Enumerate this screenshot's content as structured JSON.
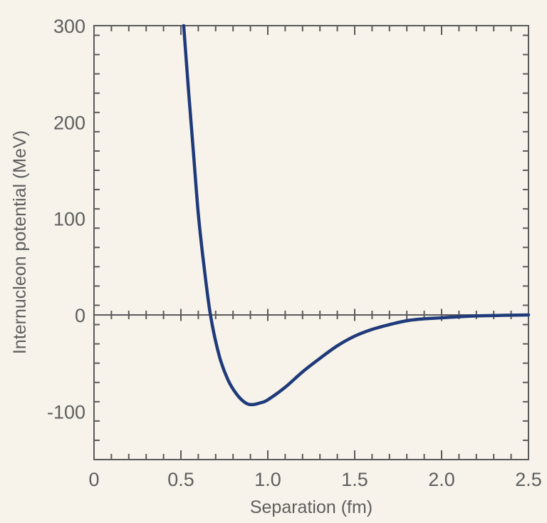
{
  "chart_data": {
    "type": "line",
    "title": "",
    "xlabel": "Separation (fm)",
    "ylabel": "Internucleon potential (MeV)",
    "xlim": [
      0,
      2.5
    ],
    "ylim": [
      -150,
      300
    ],
    "x_ticks": [
      0,
      0.5,
      1.0,
      1.5,
      2.0,
      2.5
    ],
    "x_tick_labels": [
      "0",
      "0.5",
      "1.0",
      "1.5",
      "2.0",
      "2.5"
    ],
    "x_minor_step": 0.1,
    "y_ticks": [
      300,
      200,
      100,
      0,
      -100
    ],
    "y_tick_labels": [
      "300",
      "200",
      "100",
      "0",
      "-100"
    ],
    "y_minor_step": 20,
    "grid": false,
    "zero_line": true,
    "colors": {
      "background": "#f7f3ea",
      "curve": "#1f3a7a",
      "axis": "#5a5a5a"
    },
    "series": [
      {
        "x": [
          0.516,
          0.545,
          0.574,
          0.6,
          0.63,
          0.67,
          0.72,
          0.77,
          0.82,
          0.87,
          0.91,
          0.96,
          1.0,
          1.1,
          1.2,
          1.3,
          1.4,
          1.5,
          1.6,
          1.7,
          1.8,
          1.9,
          2.0,
          2.2,
          2.5
        ],
        "y": [
          300,
          230,
          164,
          105,
          55,
          0,
          -42,
          -67,
          -82,
          -91,
          -93,
          -91,
          -88,
          -75,
          -59,
          -45,
          -32,
          -22,
          -15,
          -10,
          -6,
          -4,
          -3,
          -1,
          0
        ]
      }
    ]
  }
}
